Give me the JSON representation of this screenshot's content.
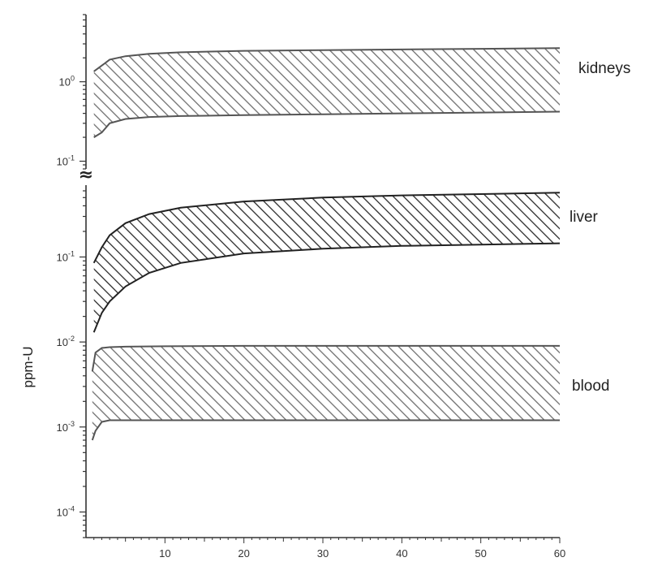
{
  "chart_data": {
    "type": "area",
    "ylabel": "ppm-U",
    "xlabel": "",
    "x_ticks": [
      10,
      20,
      30,
      40,
      50,
      60
    ],
    "xlim": [
      0,
      60
    ],
    "y_scale": "log",
    "axis_break": true,
    "panels": [
      {
        "name": "upper",
        "ylim": [
          0.08,
          7
        ],
        "y_ticks": [
          {
            "value": 1,
            "base": "10",
            "exp": "0"
          },
          {
            "value": 0.1,
            "base": "10",
            "exp": "-1"
          }
        ]
      },
      {
        "name": "lower",
        "ylim": [
          5e-05,
          0.7
        ],
        "y_ticks": [
          {
            "value": 0.1,
            "base": "10",
            "exp": "-1"
          },
          {
            "value": 0.01,
            "base": "10",
            "exp": "-2"
          },
          {
            "value": 0.001,
            "base": "10",
            "exp": "-3"
          },
          {
            "value": 0.0001,
            "base": "10",
            "exp": "-4"
          }
        ]
      }
    ],
    "series": [
      {
        "name": "kidneys",
        "panel": "upper",
        "hatch_color": "#6f6f6f",
        "x": [
          1,
          2,
          3,
          5,
          8,
          12,
          20,
          30,
          40,
          50,
          60
        ],
        "upper": [
          1.35,
          1.6,
          1.9,
          2.1,
          2.25,
          2.35,
          2.45,
          2.5,
          2.55,
          2.6,
          2.65
        ],
        "lower": [
          0.2,
          0.23,
          0.3,
          0.34,
          0.36,
          0.37,
          0.38,
          0.39,
          0.4,
          0.41,
          0.42
        ]
      },
      {
        "name": "liver",
        "panel": "lower",
        "hatch_color": "#2b2b2b",
        "x": [
          1,
          2,
          3,
          5,
          8,
          12,
          20,
          30,
          40,
          50,
          60
        ],
        "upper": [
          0.085,
          0.13,
          0.18,
          0.25,
          0.32,
          0.38,
          0.45,
          0.5,
          0.53,
          0.55,
          0.57
        ],
        "lower": [
          0.013,
          0.022,
          0.03,
          0.045,
          0.065,
          0.085,
          0.11,
          0.125,
          0.135,
          0.14,
          0.145
        ]
      },
      {
        "name": "blood",
        "panel": "lower",
        "hatch_color": "#6f6f6f",
        "x": [
          0.8,
          1.2,
          2,
          3,
          5,
          10,
          20,
          30,
          40,
          50,
          60
        ],
        "upper": [
          0.0045,
          0.0075,
          0.0085,
          0.0087,
          0.0088,
          0.0089,
          0.009,
          0.009,
          0.009,
          0.009,
          0.009
        ],
        "lower": [
          0.0007,
          0.0009,
          0.00115,
          0.0012,
          0.0012,
          0.0012,
          0.0012,
          0.0012,
          0.0012,
          0.0012,
          0.0012
        ]
      }
    ]
  }
}
